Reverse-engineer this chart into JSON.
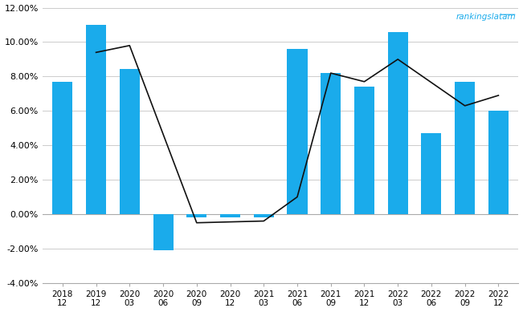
{
  "categories": [
    "2018\n12",
    "2019\n12",
    "2020\n03",
    "2020\n06",
    "2020\n09",
    "2020\n12",
    "2021\n03",
    "2021\n06",
    "2021\n09",
    "2021\n12",
    "2022\n03",
    "2022\n06",
    "2022\n09",
    "2022\n12"
  ],
  "bar_values": [
    0.0767,
    0.11,
    0.0845,
    -0.021,
    -0.002,
    -0.002,
    -0.002,
    0.096,
    0.082,
    0.074,
    0.106,
    0.047,
    0.077,
    0.06
  ],
  "line_segments": [
    {
      "x": [
        1,
        2,
        4,
        6,
        7,
        8,
        9,
        10,
        12,
        13
      ],
      "y": [
        0.094,
        0.098,
        -0.005,
        -0.004,
        0.01,
        0.082,
        0.077,
        0.09,
        0.063,
        0.069
      ]
    }
  ],
  "bar_color": "#1AABEB",
  "line_color": "#111111",
  "ylim": [
    -0.04,
    0.12
  ],
  "yticks": [
    -0.04,
    -0.02,
    0.0,
    0.02,
    0.04,
    0.06,
    0.08,
    0.1,
    0.12
  ],
  "watermark": "rankingslatam",
  "watermark_color": "#1AABEB",
  "background_color": "#ffffff",
  "grid_color": "#cccccc"
}
